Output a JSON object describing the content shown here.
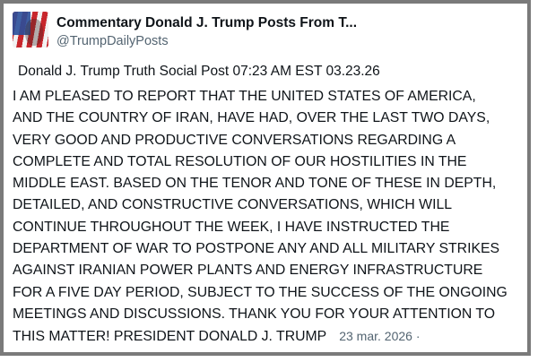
{
  "account": {
    "display_name": "Commentary Donald J. Trump Posts From T...",
    "handle": "@TrumpDailyPosts",
    "avatar_icon": "flag-portrait-avatar"
  },
  "post": {
    "headline": "Donald J. Trump Truth Social Post 07:23 AM EST 03.23.26",
    "lines": [
      "I AM PLEASED TO REPORT THAT THE UNITED STATES OF AMERICA,",
      "AND THE COUNTRY OF IRAN, HAVE HAD, OVER THE LAST TWO DAYS,",
      "VERY GOOD AND PRODUCTIVE CONVERSATIONS REGARDING A",
      "COMPLETE AND TOTAL RESOLUTION OF OUR HOSTILITIES IN THE",
      "MIDDLE EAST. BASED ON THE TENOR AND TONE OF THESE IN DEPTH,",
      "DETAILED, AND CONSTRUCTIVE CONVERSATIONS, WHICH WILL",
      "CONTINUE THROUGHOUT THE WEEK, I HAVE INSTRUCTED THE",
      "DEPARTMENT OF WAR TO POSTPONE ANY AND ALL MILITARY STRIKES",
      "AGAINST IRANIAN POWER PLANTS AND ENERGY INFRASTRUCTURE",
      "FOR A FIVE DAY PERIOD, SUBJECT TO THE SUCCESS OF THE ONGOING",
      "MEETINGS AND DISCUSSIONS. THANK YOU FOR YOUR ATTENTION TO",
      "THIS MATTER! PRESIDENT DONALD J. TRUMP"
    ],
    "date": "23 mar. 2026 ·"
  },
  "colors": {
    "border": "#7a7a7a",
    "text": "#0f1419",
    "secondary": "#536471"
  }
}
